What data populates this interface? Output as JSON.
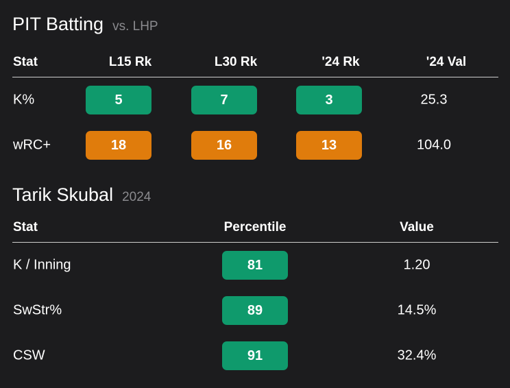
{
  "colors": {
    "background": "#1c1c1e",
    "good": "#0f9a6c",
    "average": "#e07c0c",
    "muted": "#8a8a8e"
  },
  "batting": {
    "title": "PIT Batting",
    "subtitle": "vs. LHP",
    "headers": [
      "Stat",
      "L15 Rk",
      "L30 Rk",
      "'24 Rk",
      "'24 Val"
    ],
    "rows": [
      {
        "stat": "K%",
        "l15": "5",
        "l30": "7",
        "y24rk": "3",
        "y24val": "25.3",
        "rank_color": "good"
      },
      {
        "stat": "wRC+",
        "l15": "18",
        "l30": "16",
        "y24rk": "13",
        "y24val": "104.0",
        "rank_color": "average"
      }
    ]
  },
  "pitcher": {
    "title": "Tarik Skubal",
    "subtitle": "2024",
    "headers": [
      "Stat",
      "Percentile",
      "Value"
    ],
    "rows": [
      {
        "stat": "K / Inning",
        "percentile": "81",
        "value": "1.20",
        "rank_color": "good"
      },
      {
        "stat": "SwStr%",
        "percentile": "89",
        "value": "14.5%",
        "rank_color": "good"
      },
      {
        "stat": "CSW",
        "percentile": "91",
        "value": "32.4%",
        "rank_color": "good"
      }
    ]
  }
}
